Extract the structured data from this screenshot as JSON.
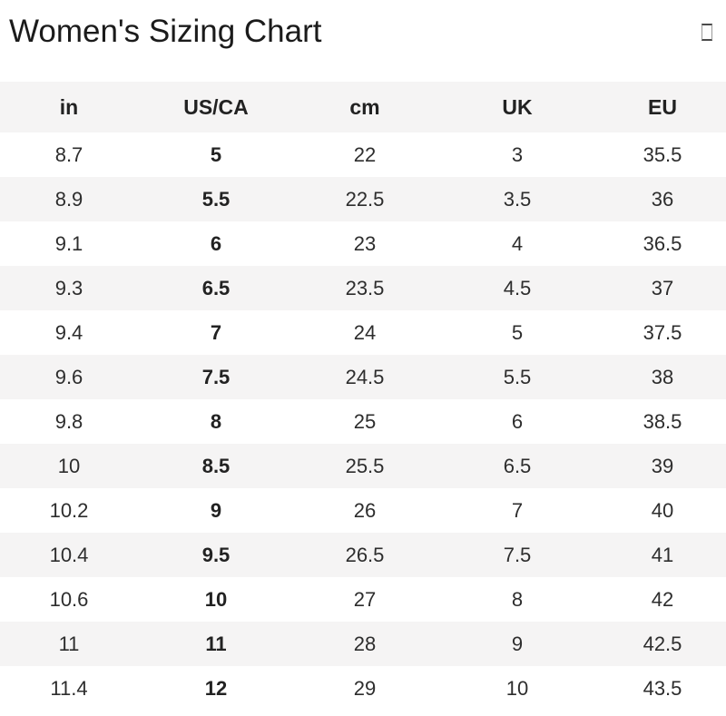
{
  "page": {
    "title": "Women's Sizing Chart",
    "header_icon": "missing-glyph-box-icon"
  },
  "table": {
    "columns": [
      "in",
      "US/CA",
      "cm",
      "UK",
      "EU"
    ],
    "bold_column": "US/CA",
    "rows": [
      [
        "8.7",
        "5",
        "22",
        "3",
        "35.5"
      ],
      [
        "8.9",
        "5.5",
        "22.5",
        "3.5",
        "36"
      ],
      [
        "9.1",
        "6",
        "23",
        "4",
        "36.5"
      ],
      [
        "9.3",
        "6.5",
        "23.5",
        "4.5",
        "37"
      ],
      [
        "9.4",
        "7",
        "24",
        "5",
        "37.5"
      ],
      [
        "9.6",
        "7.5",
        "24.5",
        "5.5",
        "38"
      ],
      [
        "9.8",
        "8",
        "25",
        "6",
        "38.5"
      ],
      [
        "10",
        "8.5",
        "25.5",
        "6.5",
        "39"
      ],
      [
        "10.2",
        "9",
        "26",
        "7",
        "40"
      ],
      [
        "10.4",
        "9.5",
        "26.5",
        "7.5",
        "41"
      ],
      [
        "10.6",
        "10",
        "27",
        "8",
        "42"
      ],
      [
        "11",
        "11",
        "28",
        "9",
        "42.5"
      ],
      [
        "11.4",
        "12",
        "29",
        "10",
        "43.5"
      ]
    ]
  },
  "colors": {
    "header_bg": "#f5f4f4",
    "stripe_bg": "#f5f4f4",
    "row_bg": "#ffffff",
    "text": "#2d2d2d",
    "title_text": "#1b1b1b"
  }
}
